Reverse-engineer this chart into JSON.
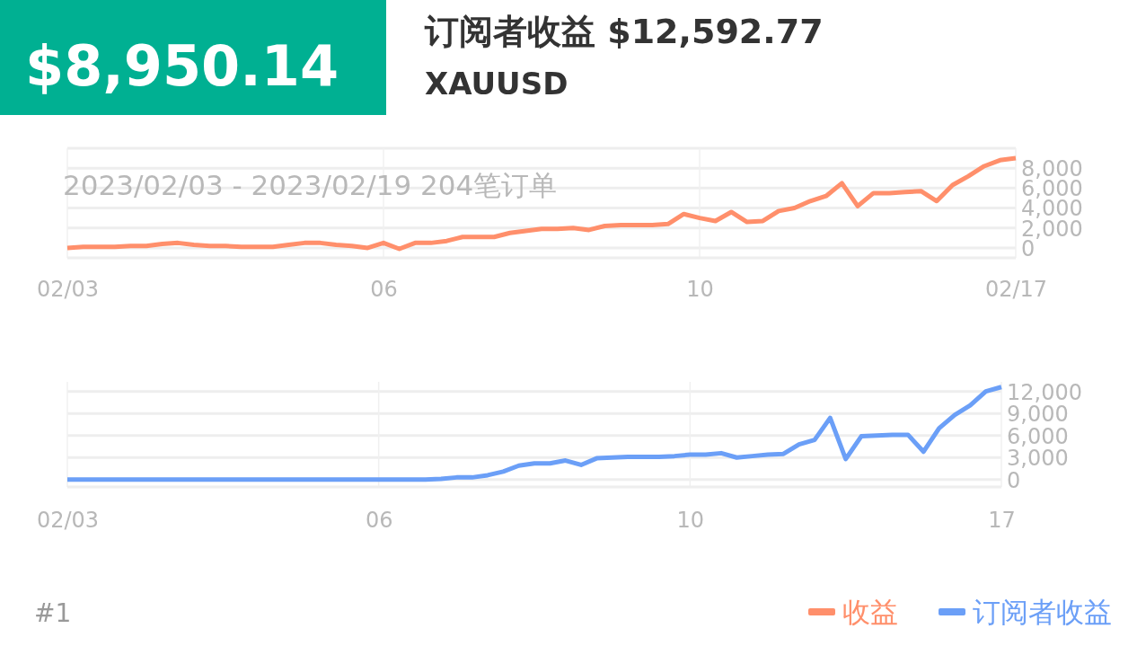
{
  "chart_data": [
    {
      "type": "line",
      "title": "订阅者收益 $12,592.77",
      "subtitle": "XAUUSD",
      "annotations": [
        "$8,950.14",
        "2023/02/03 - 2023/02/19  204笔订单"
      ],
      "categories": [
        "02/03",
        null,
        null,
        null,
        null,
        null,
        null,
        null,
        null,
        null,
        null,
        null,
        null,
        null,
        null,
        null,
        null,
        null,
        null,
        null,
        "06",
        null,
        null,
        null,
        null,
        null,
        null,
        null,
        null,
        null,
        null,
        null,
        null,
        null,
        null,
        null,
        null,
        null,
        null,
        null,
        "10",
        null,
        null,
        null,
        null,
        null,
        null,
        null,
        null,
        null,
        null,
        null,
        null,
        null,
        null,
        null,
        null,
        null,
        null,
        null,
        "02/17"
      ],
      "ylim": [
        -1000,
        10000
      ],
      "yticks": [
        0,
        {
          "value": 2000,
          "label": "2,000"
        },
        {
          "value": 4000,
          "label": "4,000"
        },
        {
          "value": 6000,
          "label": "6,000"
        },
        {
          "value": 8000,
          "label": "8,000"
        },
        {
          "value": 10000,
          "label": null
        }
      ],
      "grid": true,
      "legend": "bottom right",
      "series": [
        {
          "name": "收益",
          "color": "#ff8f6b",
          "values": [
            0,
            100,
            100,
            100,
            200,
            200,
            400,
            500,
            300,
            200,
            200,
            100,
            100,
            100,
            300,
            500,
            500,
            300,
            200,
            0,
            500,
            -100,
            500,
            500,
            700,
            1100,
            1100,
            1100,
            1500,
            1700,
            1900,
            1900,
            2000,
            1800,
            2200,
            2300,
            2300,
            2300,
            2400,
            3400,
            3000,
            2700,
            3600,
            2600,
            2700,
            3700,
            4000,
            4700,
            5200,
            6500,
            4200,
            5500,
            5500,
            5600,
            5700,
            4700,
            6300,
            7200,
            8200,
            8800,
            9000
          ]
        }
      ]
    },
    {
      "type": "line",
      "annotations": [
        "#1"
      ],
      "categories": [
        "02/03",
        null,
        null,
        null,
        null,
        null,
        null,
        null,
        null,
        null,
        null,
        null,
        null,
        null,
        null,
        null,
        null,
        null,
        null,
        null,
        "06",
        null,
        null,
        null,
        null,
        null,
        null,
        null,
        null,
        null,
        null,
        null,
        null,
        null,
        null,
        null,
        null,
        null,
        null,
        null,
        "10",
        null,
        null,
        null,
        null,
        null,
        null,
        null,
        null,
        null,
        null,
        null,
        null,
        null,
        null,
        null,
        null,
        null,
        null,
        null,
        "17"
      ],
      "ylim": [
        -1000,
        13300
      ],
      "yticks": [
        0,
        {
          "value": 3000,
          "label": "3,000"
        },
        {
          "value": 6000,
          "label": "6,000"
        },
        {
          "value": 9000,
          "label": "9,000"
        },
        {
          "value": 12000,
          "label": "12,000"
        }
      ],
      "grid": true,
      "legend": "bottom right",
      "series": [
        {
          "name": "订阅者收益",
          "color": "#6b9ff7",
          "values": [
            0,
            0,
            0,
            0,
            0,
            0,
            0,
            0,
            0,
            0,
            0,
            0,
            0,
            0,
            0,
            0,
            0,
            0,
            0,
            0,
            0,
            0,
            0,
            0,
            100,
            300,
            300,
            600,
            1100,
            1900,
            2200,
            2200,
            2600,
            2000,
            2900,
            3000,
            3100,
            3100,
            3100,
            3200,
            3400,
            3400,
            3600,
            3000,
            3200,
            3400,
            3500,
            4800,
            5400,
            8400,
            2800,
            5900,
            6000,
            6100,
            6100,
            3800,
            7000,
            8800,
            10100,
            12000,
            12600
          ]
        }
      ]
    }
  ]
}
